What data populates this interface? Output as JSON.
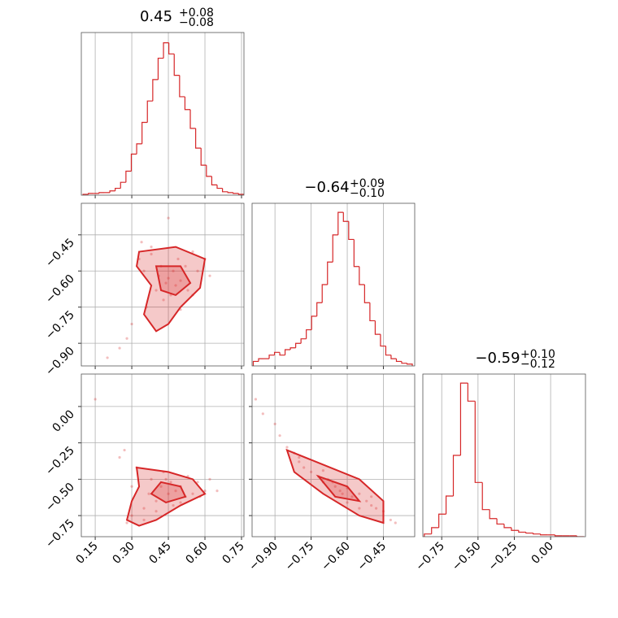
{
  "chart_data": [
    {
      "type": "histogram",
      "title": "0.45",
      "title_plus": "+0.08",
      "title_minus": "−0.08",
      "color": "#d62728",
      "bins": [
        0.1,
        0.122,
        0.144,
        0.166,
        0.188,
        0.21,
        0.232,
        0.254,
        0.276,
        0.298,
        0.32,
        0.342,
        0.364,
        0.386,
        0.408,
        0.43,
        0.452,
        0.474,
        0.496,
        0.518,
        0.54,
        0.562,
        0.584,
        0.606,
        0.628,
        0.65,
        0.672,
        0.694,
        0.716,
        0.738,
        0.76
      ],
      "counts": [
        1,
        2,
        2,
        3,
        3,
        5,
        8,
        15,
        28,
        48,
        60,
        85,
        110,
        135,
        160,
        178,
        165,
        140,
        115,
        100,
        78,
        55,
        35,
        22,
        12,
        8,
        4,
        3,
        2,
        1
      ],
      "xlim": [
        0.093,
        0.76
      ],
      "ylim": [
        0,
        190
      ],
      "xticks": [
        0.15,
        0.3,
        0.45,
        0.6,
        0.75
      ],
      "grid": true
    },
    {
      "type": "scatter",
      "color": "#d62728",
      "x": [
        0.2,
        0.25,
        0.28,
        0.3,
        0.33,
        0.35,
        0.36,
        0.38,
        0.4,
        0.41,
        0.42,
        0.43,
        0.44,
        0.45,
        0.46,
        0.47,
        0.48,
        0.49,
        0.5,
        0.52,
        0.53,
        0.55,
        0.57,
        0.6,
        0.62,
        0.45,
        0.38,
        0.5,
        0.34,
        0.55
      ],
      "y": [
        -0.96,
        -0.92,
        -0.88,
        -0.82,
        -0.55,
        -0.6,
        -0.75,
        -0.53,
        -0.68,
        -0.62,
        -0.58,
        -0.72,
        -0.65,
        -0.63,
        -0.7,
        -0.6,
        -0.66,
        -0.55,
        -0.64,
        -0.58,
        -0.68,
        -0.52,
        -0.6,
        -0.55,
        -0.62,
        -0.38,
        -0.5,
        -0.76,
        -0.48,
        -0.7
      ],
      "contours": [
        {
          "x": [
            0.33,
            0.48,
            0.6,
            0.58,
            0.5,
            0.45,
            0.4,
            0.35,
            0.38,
            0.32
          ],
          "y": [
            -0.52,
            -0.5,
            -0.55,
            -0.67,
            -0.75,
            -0.82,
            -0.85,
            -0.78,
            -0.66,
            -0.58
          ]
        },
        {
          "x": [
            0.4,
            0.5,
            0.54,
            0.48,
            0.42
          ],
          "y": [
            -0.58,
            -0.58,
            -0.65,
            -0.7,
            -0.68
          ]
        }
      ],
      "xlim": [
        0.093,
        0.76
      ],
      "ylim": [
        -0.994,
        -0.319
      ],
      "xticks": [
        0.15,
        0.3,
        0.45,
        0.6,
        0.75
      ],
      "yticks": [
        {
          "value": -0.45,
          "label": "−0.45"
        },
        {
          "value": -0.6,
          "label": "−0.60"
        },
        {
          "value": -0.75,
          "label": "−0.75"
        },
        {
          "value": -0.9,
          "label": "−0.90"
        }
      ],
      "grid": true
    },
    {
      "type": "histogram",
      "title": "−0.64",
      "title_plus": "+0.09",
      "title_minus": "−0.10",
      "color": "#d62728",
      "bins": [
        -0.99,
        -0.968,
        -0.946,
        -0.924,
        -0.902,
        -0.88,
        -0.858,
        -0.836,
        -0.814,
        -0.792,
        -0.77,
        -0.748,
        -0.726,
        -0.704,
        -0.682,
        -0.66,
        -0.638,
        -0.616,
        -0.594,
        -0.572,
        -0.55,
        -0.528,
        -0.506,
        -0.484,
        -0.462,
        -0.44,
        -0.418,
        -0.396,
        -0.374,
        -0.352,
        -0.33
      ],
      "counts": [
        5,
        8,
        8,
        12,
        15,
        12,
        18,
        20,
        25,
        30,
        40,
        55,
        70,
        90,
        115,
        145,
        170,
        160,
        140,
        110,
        90,
        70,
        50,
        35,
        22,
        12,
        8,
        5,
        3,
        2
      ],
      "xlim": [
        -0.995,
        -0.32
      ],
      "ylim": [
        0,
        180
      ],
      "xticks": [
        -0.9,
        -0.75,
        -0.6,
        -0.45
      ],
      "grid": true
    },
    {
      "type": "scatter",
      "color": "#d62728",
      "x": [
        0.15,
        0.25,
        0.28,
        0.3,
        0.32,
        0.35,
        0.37,
        0.38,
        0.4,
        0.42,
        0.43,
        0.45,
        0.46,
        0.47,
        0.48,
        0.5,
        0.52,
        0.53,
        0.55,
        0.57,
        0.6,
        0.62,
        0.35,
        0.44,
        0.5,
        0.4,
        0.58,
        0.3,
        0.27,
        0.65
      ],
      "y": [
        0.05,
        -0.35,
        -0.8,
        -0.75,
        -0.42,
        -0.7,
        -0.6,
        -0.5,
        -0.65,
        -0.55,
        -0.45,
        -0.6,
        -0.52,
        -0.68,
        -0.58,
        -0.55,
        -0.62,
        -0.48,
        -0.6,
        -0.52,
        -0.58,
        -0.5,
        -0.78,
        -0.5,
        -0.66,
        -0.72,
        -0.62,
        -0.55,
        -0.3,
        -0.58
      ],
      "contours": [
        {
          "x": [
            0.32,
            0.45,
            0.55,
            0.6,
            0.5,
            0.4,
            0.33,
            0.28,
            0.3,
            0.33
          ],
          "y": [
            -0.42,
            -0.45,
            -0.5,
            -0.6,
            -0.68,
            -0.78,
            -0.82,
            -0.78,
            -0.65,
            -0.55
          ]
        },
        {
          "x": [
            0.42,
            0.5,
            0.52,
            0.44,
            0.38
          ],
          "y": [
            -0.52,
            -0.55,
            -0.62,
            -0.66,
            -0.6
          ]
        }
      ],
      "xlim": [
        0.093,
        0.76
      ],
      "ylim": [
        -0.895,
        0.223
      ],
      "xticks": [
        0.15,
        {
          "value": 0.3,
          "label": "0.30"
        },
        0.45,
        {
          "value": 0.6,
          "label": "0.60"
        },
        0.75
      ],
      "yticks": [
        {
          "value": 0,
          "label": "0.00"
        },
        {
          "value": -0.25,
          "label": "−0.25"
        },
        {
          "value": -0.5,
          "label": "−0.50"
        },
        {
          "value": -0.75,
          "label": "−0.75"
        }
      ],
      "grid": true
    },
    {
      "type": "scatter",
      "color": "#d62728",
      "x": [
        -0.98,
        -0.95,
        -0.9,
        -0.88,
        -0.85,
        -0.82,
        -0.8,
        -0.78,
        -0.75,
        -0.72,
        -0.7,
        -0.68,
        -0.65,
        -0.63,
        -0.6,
        -0.58,
        -0.55,
        -0.52,
        -0.5,
        -0.48,
        -0.45,
        -0.42,
        -0.4,
        -0.7,
        -0.62,
        -0.55,
        -0.8,
        -0.66,
        -0.5,
        -0.6
      ],
      "y": [
        0.05,
        -0.05,
        -0.12,
        -0.2,
        -0.28,
        -0.32,
        -0.38,
        -0.42,
        -0.45,
        -0.48,
        -0.52,
        -0.5,
        -0.55,
        -0.58,
        -0.56,
        -0.62,
        -0.6,
        -0.65,
        -0.68,
        -0.7,
        -0.72,
        -0.78,
        -0.8,
        -0.44,
        -0.6,
        -0.7,
        -0.35,
        -0.52,
        -0.62,
        -0.66
      ],
      "contours": [
        {
          "x": [
            -0.85,
            -0.7,
            -0.55,
            -0.45,
            -0.45,
            -0.55,
            -0.7,
            -0.82
          ],
          "y": [
            -0.3,
            -0.4,
            -0.5,
            -0.65,
            -0.8,
            -0.75,
            -0.6,
            -0.45
          ]
        },
        {
          "x": [
            -0.72,
            -0.6,
            -0.55,
            -0.65
          ],
          "y": [
            -0.48,
            -0.55,
            -0.65,
            -0.62
          ]
        }
      ],
      "xlim": [
        -0.995,
        -0.32
      ],
      "ylim": [
        -0.895,
        0.223
      ],
      "xticks": [
        {
          "value": -0.9,
          "label": "−0.90"
        },
        {
          "value": -0.75,
          "label": "−0.75"
        },
        {
          "value": -0.6,
          "label": "−0.60"
        },
        {
          "value": -0.45,
          "label": "−0.45"
        }
      ],
      "yticks": [
        0,
        -0.25,
        -0.5,
        -0.75
      ],
      "grid": true
    },
    {
      "type": "histogram",
      "title": "−0.59",
      "title_plus": "+0.10",
      "title_minus": "−0.12",
      "color": "#d62728",
      "bins": [
        -0.87,
        -0.82,
        -0.77,
        -0.72,
        -0.67,
        -0.62,
        -0.57,
        -0.52,
        -0.47,
        -0.42,
        -0.37,
        -0.32,
        -0.27,
        -0.22,
        -0.17,
        -0.12,
        -0.07,
        -0.02,
        0.03,
        0.08,
        0.13,
        0.18,
        0.23
      ],
      "counts": [
        3,
        10,
        25,
        45,
        90,
        170,
        150,
        60,
        30,
        20,
        14,
        10,
        7,
        5,
        4,
        3,
        2,
        2,
        1,
        1,
        1,
        0
      ],
      "xlim": [
        -0.88,
        0.24
      ],
      "ylim": [
        0,
        180
      ],
      "xticks": [
        {
          "value": -0.75,
          "label": "−0.75"
        },
        {
          "value": -0.5,
          "label": "−0.50"
        },
        {
          "value": -0.25,
          "label": "−0.25"
        },
        {
          "value": 0,
          "label": "0.00"
        }
      ],
      "grid": true
    }
  ]
}
